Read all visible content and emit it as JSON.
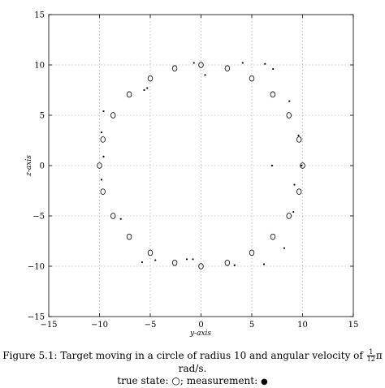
{
  "chart_data": {
    "type": "scatter",
    "title": "",
    "xlabel": "y-axis",
    "ylabel": "z-axis",
    "xlim": [
      -15,
      15
    ],
    "ylim": [
      -15,
      15
    ],
    "x_ticks": [
      "−15",
      "−10",
      "−5",
      "0",
      "5",
      "10",
      "15"
    ],
    "y_ticks": [
      "15",
      "10",
      "5",
      "0",
      "−5",
      "−10",
      "−15"
    ],
    "grid": true,
    "series": [
      {
        "name": "true state",
        "marker": "circle-open",
        "x": [
          10,
          9.66,
          8.66,
          7.07,
          5,
          2.59,
          0,
          -2.59,
          -5,
          -7.07,
          -8.66,
          -9.66,
          -10,
          -9.66,
          -8.66,
          -7.07,
          -5,
          -2.59,
          0,
          2.59,
          5,
          7.07,
          8.66,
          9.66
        ],
        "y": [
          0,
          2.59,
          5,
          7.07,
          8.66,
          9.66,
          10,
          9.66,
          8.66,
          7.07,
          5,
          2.59,
          0,
          -2.59,
          -5,
          -7.07,
          -8.66,
          -9.66,
          -10,
          -9.66,
          -8.66,
          -7.07,
          -5,
          -2.59
        ]
      },
      {
        "name": "measurement",
        "marker": "dot",
        "x": [
          9.9,
          9.6,
          8.7,
          7.1,
          6.3,
          4.1,
          0.4,
          -0.7,
          -5.3,
          -5.6,
          -9.6,
          -9.8,
          -9.6,
          -9.8,
          -7.9,
          -5.8,
          -4.5,
          -1.4,
          -0.8,
          3.3,
          6.2,
          8.2,
          9.1,
          9.2,
          7.0
        ],
        "y": [
          0,
          3.0,
          6.4,
          9.6,
          10.1,
          10.2,
          9.0,
          10.2,
          7.7,
          7.5,
          5.4,
          3.3,
          0.9,
          -1.4,
          -5.3,
          -9.6,
          -9.4,
          -9.3,
          -9.3,
          -9.9,
          -9.8,
          -8.2,
          -4.6,
          -1.9,
          0
        ]
      }
    ]
  },
  "caption": {
    "line1_before": "Figure 5.1: Target moving in a circle of radius 10 and angular velocity of",
    "frac_num": "1",
    "frac_den": "12",
    "line1_after": "π rad/s.",
    "line2_text": "true state: ○; measurement:",
    "line2_symbol": "●"
  }
}
